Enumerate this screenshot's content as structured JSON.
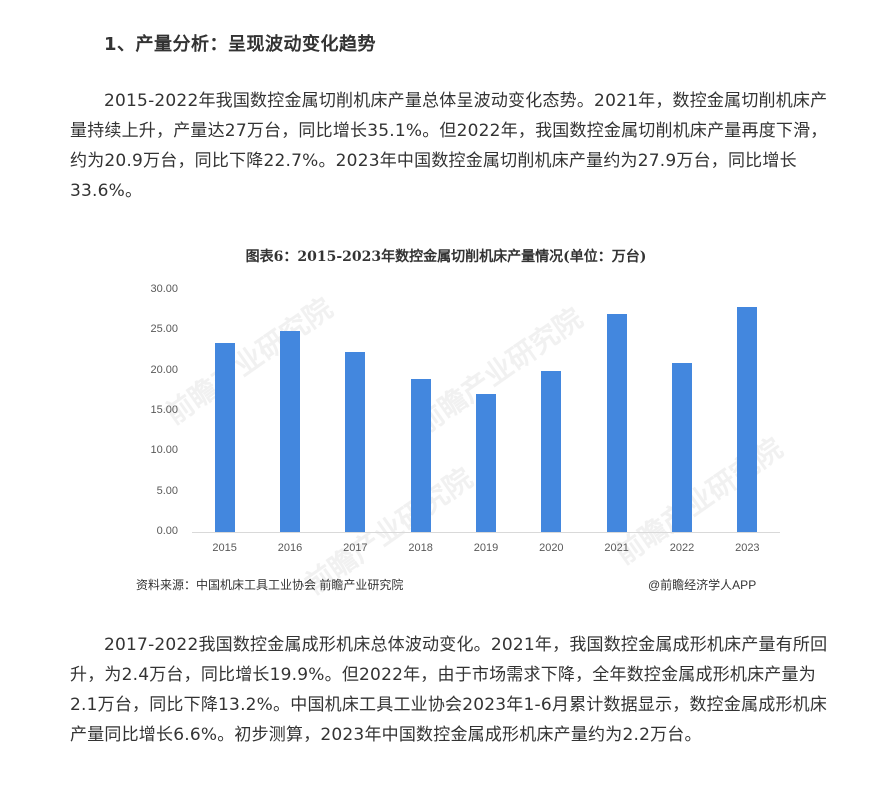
{
  "section": {
    "heading": "1、产量分析：呈现波动变化趋势"
  },
  "paragraphs": {
    "p1": "2015-2022年我国数控金属切削机床产量总体呈波动变化态势。2021年，数控金属切削机床产量持续上升，产量达27万台，同比增长35.1%。但2022年，我国数控金属切削机床产量再度下滑，约为20.9万台，同比下降22.7%。2023年中国数控金属切削机床产量约为27.9万台，同比增长33.6%。",
    "p2": "2017-2022我国数控金属成形机床总体波动变化。2021年，我国数控金属成形机床产量有所回升，为2.4万台，同比增长19.9%。但2022年，由于市场需求下降，全年数控金属成形机床产量为2.1万台，同比下降13.2%。中国机床工具工业协会2023年1-6月累计数据显示，数控金属成形机床产量同比增长6.6%。初步测算，2023年中国数控金属成形机床产量约为2.2万台。"
  },
  "figure": {
    "title": "图表6：2015-2023年数控金属切削机床产量情况(单位：万台)",
    "source": "资料来源：中国机床工具工业协会 前瞻产业研究院",
    "credit": "@前瞻经济学人APP",
    "watermark": "前瞻产业研究院",
    "bar_color": "#4387de"
  },
  "chart_data": {
    "type": "bar",
    "title": "图表6：2015-2023年数控金属切削机床产量情况(单位：万台)",
    "xlabel": "",
    "ylabel": "万台",
    "categories": [
      "2015",
      "2016",
      "2017",
      "2018",
      "2019",
      "2020",
      "2021",
      "2022",
      "2023"
    ],
    "values": [
      23.4,
      24.9,
      22.3,
      19.0,
      17.1,
      19.9,
      27.0,
      20.9,
      27.9
    ],
    "ylim": [
      0,
      30
    ],
    "yticks": [
      "0.00",
      "5.00",
      "10.00",
      "15.00",
      "20.00",
      "25.00",
      "30.00"
    ],
    "grid": false,
    "legend": null,
    "source": "资料来源：中国机床工具工业协会 前瞻产业研究院"
  }
}
